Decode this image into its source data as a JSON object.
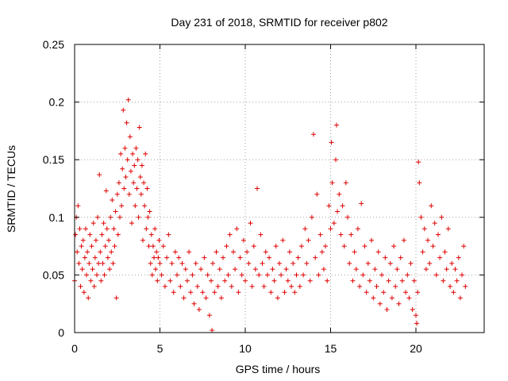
{
  "chart_data": {
    "type": "scatter",
    "title": "Day 231 of 2018, SRMTID for receiver p802",
    "xlabel": "GPS time / hours",
    "ylabel": "SRMTID / TECUs",
    "xlim": [
      0,
      24
    ],
    "ylim": [
      0,
      0.25
    ],
    "xticks": [
      0,
      5,
      10,
      15,
      20
    ],
    "xtick_labels": [
      "0",
      "5",
      "10",
      "15",
      "20"
    ],
    "yticks": [
      0,
      0.05,
      0.1,
      0.15,
      0.2,
      0.25
    ],
    "ytick_labels": [
      "0",
      "0.05",
      "0.1",
      "0.15",
      "0.2",
      "0.25"
    ],
    "grid": true,
    "marker": "+",
    "marker_color": "#e00000",
    "series": [
      {
        "name": "SRMTID",
        "points": [
          [
            0.0,
            0.045
          ],
          [
            0.05,
            0.085
          ],
          [
            0.1,
            0.1
          ],
          [
            0.15,
            0.07
          ],
          [
            0.2,
            0.11
          ],
          [
            0.25,
            0.06
          ],
          [
            0.3,
            0.09
          ],
          [
            0.35,
            0.04
          ],
          [
            0.4,
            0.075
          ],
          [
            0.45,
            0.055
          ],
          [
            0.5,
            0.08
          ],
          [
            0.55,
            0.035
          ],
          [
            0.6,
            0.065
          ],
          [
            0.65,
            0.09
          ],
          [
            0.7,
            0.05
          ],
          [
            0.75,
            0.07
          ],
          [
            0.8,
            0.03
          ],
          [
            0.85,
            0.06
          ],
          [
            0.9,
            0.085
          ],
          [
            0.95,
            0.045
          ],
          [
            1.0,
            0.075
          ],
          [
            1.05,
            0.055
          ],
          [
            1.1,
            0.095
          ],
          [
            1.15,
            0.04
          ],
          [
            1.2,
            0.065
          ],
          [
            1.25,
            0.08
          ],
          [
            1.3,
            0.05
          ],
          [
            1.35,
            0.1
          ],
          [
            1.4,
            0.06
          ],
          [
            1.45,
            0.137
          ],
          [
            1.5,
            0.07
          ],
          [
            1.55,
            0.045
          ],
          [
            1.6,
            0.085
          ],
          [
            1.65,
            0.06
          ],
          [
            1.7,
            0.095
          ],
          [
            1.75,
            0.05
          ],
          [
            1.8,
            0.075
          ],
          [
            1.85,
            0.123
          ],
          [
            1.9,
            0.09
          ],
          [
            1.95,
            0.065
          ],
          [
            2.0,
            0.08
          ],
          [
            2.05,
            0.055
          ],
          [
            2.1,
            0.1
          ],
          [
            2.15,
            0.07
          ],
          [
            2.2,
            0.115
          ],
          [
            2.25,
            0.06
          ],
          [
            2.3,
            0.09
          ],
          [
            2.35,
            0.075
          ],
          [
            2.4,
            0.105
          ],
          [
            2.45,
            0.03
          ],
          [
            2.5,
            0.12
          ],
          [
            2.55,
            0.085
          ],
          [
            2.6,
            0.13
          ],
          [
            2.65,
            0.1
          ],
          [
            2.7,
            0.155
          ],
          [
            2.75,
            0.11
          ],
          [
            2.8,
            0.142
          ],
          [
            2.85,
            0.193
          ],
          [
            2.9,
            0.125
          ],
          [
            2.95,
            0.16
          ],
          [
            3.0,
            0.135
          ],
          [
            3.05,
            0.182
          ],
          [
            3.1,
            0.15
          ],
          [
            3.15,
            0.202
          ],
          [
            3.2,
            0.12
          ],
          [
            3.25,
            0.17
          ],
          [
            3.3,
            0.14
          ],
          [
            3.35,
            0.095
          ],
          [
            3.4,
            0.155
          ],
          [
            3.45,
            0.13
          ],
          [
            3.5,
            0.145
          ],
          [
            3.55,
            0.11
          ],
          [
            3.6,
            0.16
          ],
          [
            3.65,
            0.125
          ],
          [
            3.7,
            0.15
          ],
          [
            3.75,
            0.1
          ],
          [
            3.8,
            0.178
          ],
          [
            3.85,
            0.135
          ],
          [
            3.9,
            0.12
          ],
          [
            3.95,
            0.145
          ],
          [
            4.0,
            0.08
          ],
          [
            4.05,
            0.13
          ],
          [
            4.1,
            0.11
          ],
          [
            4.15,
            0.155
          ],
          [
            4.2,
            0.09
          ],
          [
            4.25,
            0.125
          ],
          [
            4.3,
            0.1
          ],
          [
            4.35,
            0.075
          ],
          [
            4.4,
            0.105
          ],
          [
            4.45,
            0.06
          ],
          [
            4.5,
            0.085
          ],
          [
            4.55,
            0.05
          ],
          [
            4.6,
            0.075
          ],
          [
            4.65,
            0.065
          ],
          [
            4.7,
            0.09
          ],
          [
            4.75,
            0.055
          ],
          [
            4.8,
            0.07
          ],
          [
            4.85,
            0.045
          ],
          [
            4.9,
            0.065
          ],
          [
            4.95,
            0.08
          ],
          [
            5.0,
            0.06
          ],
          [
            5.1,
            0.05
          ],
          [
            5.2,
            0.075
          ],
          [
            5.3,
            0.04
          ],
          [
            5.4,
            0.065
          ],
          [
            5.5,
            0.085
          ],
          [
            5.6,
            0.045
          ],
          [
            5.7,
            0.06
          ],
          [
            5.8,
            0.035
          ],
          [
            5.9,
            0.07
          ],
          [
            6.0,
            0.05
          ],
          [
            6.1,
            0.065
          ],
          [
            6.2,
            0.04
          ],
          [
            6.3,
            0.06
          ],
          [
            6.4,
            0.03
          ],
          [
            6.5,
            0.055
          ],
          [
            6.6,
            0.045
          ],
          [
            6.7,
            0.07
          ],
          [
            6.8,
            0.035
          ],
          [
            6.9,
            0.05
          ],
          [
            7.0,
            0.025
          ],
          [
            7.1,
            0.06
          ],
          [
            7.2,
            0.04
          ],
          [
            7.3,
            0.02
          ],
          [
            7.4,
            0.055
          ],
          [
            7.5,
            0.035
          ],
          [
            7.6,
            0.065
          ],
          [
            7.7,
            0.03
          ],
          [
            7.8,
            0.05
          ],
          [
            7.9,
            0.015
          ],
          [
            8.0,
            0.045
          ],
          [
            8.05,
            0.002
          ],
          [
            8.1,
            0.06
          ],
          [
            8.2,
            0.035
          ],
          [
            8.3,
            0.07
          ],
          [
            8.4,
            0.04
          ],
          [
            8.5,
            0.055
          ],
          [
            8.6,
            0.03
          ],
          [
            8.7,
            0.065
          ],
          [
            8.8,
            0.045
          ],
          [
            8.9,
            0.075
          ],
          [
            9.0,
            0.05
          ],
          [
            9.1,
            0.085
          ],
          [
            9.2,
            0.04
          ],
          [
            9.3,
            0.07
          ],
          [
            9.4,
            0.055
          ],
          [
            9.5,
            0.09
          ],
          [
            9.6,
            0.035
          ],
          [
            9.7,
            0.065
          ],
          [
            9.8,
            0.05
          ],
          [
            9.9,
            0.08
          ],
          [
            10.0,
            0.045
          ],
          [
            10.1,
            0.07
          ],
          [
            10.2,
            0.06
          ],
          [
            10.3,
            0.095
          ],
          [
            10.4,
            0.04
          ],
          [
            10.5,
            0.075
          ],
          [
            10.6,
            0.055
          ],
          [
            10.7,
            0.125
          ],
          [
            10.8,
            0.05
          ],
          [
            10.9,
            0.085
          ],
          [
            11.0,
            0.06
          ],
          [
            11.1,
            0.04
          ],
          [
            11.2,
            0.07
          ],
          [
            11.3,
            0.05
          ],
          [
            11.4,
            0.065
          ],
          [
            11.5,
            0.035
          ],
          [
            11.6,
            0.055
          ],
          [
            11.7,
            0.045
          ],
          [
            11.8,
            0.075
          ],
          [
            11.9,
            0.03
          ],
          [
            12.0,
            0.06
          ],
          [
            12.1,
            0.05
          ],
          [
            12.2,
            0.08
          ],
          [
            12.3,
            0.035
          ],
          [
            12.4,
            0.055
          ],
          [
            12.5,
            0.045
          ],
          [
            12.6,
            0.07
          ],
          [
            12.7,
            0.04
          ],
          [
            12.8,
            0.06
          ],
          [
            12.9,
            0.035
          ],
          [
            13.0,
            0.05
          ],
          [
            13.1,
            0.065
          ],
          [
            13.2,
            0.04
          ],
          [
            13.3,
            0.075
          ],
          [
            13.4,
            0.05
          ],
          [
            13.5,
            0.09
          ],
          [
            13.6,
            0.06
          ],
          [
            13.7,
            0.08
          ],
          [
            13.8,
            0.045
          ],
          [
            13.9,
            0.1
          ],
          [
            14.0,
            0.172
          ],
          [
            14.1,
            0.065
          ],
          [
            14.2,
            0.12
          ],
          [
            14.3,
            0.05
          ],
          [
            14.4,
            0.085
          ],
          [
            14.5,
            0.07
          ],
          [
            14.6,
            0.055
          ],
          [
            14.7,
            0.075
          ],
          [
            14.8,
            0.045
          ],
          [
            14.9,
            0.11
          ],
          [
            15.0,
            0.09
          ],
          [
            15.05,
            0.165
          ],
          [
            15.1,
            0.13
          ],
          [
            15.2,
            0.095
          ],
          [
            15.3,
            0.15
          ],
          [
            15.35,
            0.18
          ],
          [
            15.4,
            0.105
          ],
          [
            15.5,
            0.12
          ],
          [
            15.6,
            0.085
          ],
          [
            15.7,
            0.11
          ],
          [
            15.8,
            0.075
          ],
          [
            15.9,
            0.13
          ],
          [
            16.0,
            0.1
          ],
          [
            16.1,
            0.06
          ],
          [
            16.2,
            0.085
          ],
          [
            16.3,
            0.045
          ],
          [
            16.4,
            0.07
          ],
          [
            16.5,
            0.055
          ],
          [
            16.6,
            0.09
          ],
          [
            16.7,
            0.04
          ],
          [
            16.8,
            0.112
          ],
          [
            16.9,
            0.05
          ],
          [
            17.0,
            0.075
          ],
          [
            17.1,
            0.035
          ],
          [
            17.2,
            0.06
          ],
          [
            17.3,
            0.045
          ],
          [
            17.4,
            0.08
          ],
          [
            17.5,
            0.03
          ],
          [
            17.6,
            0.055
          ],
          [
            17.7,
            0.04
          ],
          [
            17.8,
            0.07
          ],
          [
            17.9,
            0.025
          ],
          [
            18.0,
            0.05
          ],
          [
            18.1,
            0.035
          ],
          [
            18.2,
            0.065
          ],
          [
            18.3,
            0.02
          ],
          [
            18.4,
            0.045
          ],
          [
            18.5,
            0.06
          ],
          [
            18.6,
            0.03
          ],
          [
            18.7,
            0.075
          ],
          [
            18.8,
            0.04
          ],
          [
            18.9,
            0.055
          ],
          [
            19.0,
            0.025
          ],
          [
            19.1,
            0.065
          ],
          [
            19.2,
            0.045
          ],
          [
            19.3,
            0.08
          ],
          [
            19.4,
            0.035
          ],
          [
            19.5,
            0.05
          ],
          [
            19.6,
            0.03
          ],
          [
            19.7,
            0.06
          ],
          [
            19.8,
            0.02
          ],
          [
            19.9,
            0.045
          ],
          [
            20.0,
            0.015
          ],
          [
            20.05,
            0.008
          ],
          [
            20.1,
            0.035
          ],
          [
            20.15,
            0.148
          ],
          [
            20.2,
            0.13
          ],
          [
            20.3,
            0.1
          ],
          [
            20.4,
            0.07
          ],
          [
            20.5,
            0.09
          ],
          [
            20.6,
            0.055
          ],
          [
            20.7,
            0.08
          ],
          [
            20.8,
            0.06
          ],
          [
            20.9,
            0.11
          ],
          [
            21.0,
            0.075
          ],
          [
            21.1,
            0.095
          ],
          [
            21.2,
            0.05
          ],
          [
            21.3,
            0.085
          ],
          [
            21.4,
            0.065
          ],
          [
            21.5,
            0.1
          ],
          [
            21.6,
            0.045
          ],
          [
            21.7,
            0.07
          ],
          [
            21.8,
            0.055
          ],
          [
            21.9,
            0.09
          ],
          [
            22.0,
            0.04
          ],
          [
            22.1,
            0.06
          ],
          [
            22.2,
            0.035
          ],
          [
            22.3,
            0.055
          ],
          [
            22.4,
            0.045
          ],
          [
            22.5,
            0.065
          ],
          [
            22.6,
            0.03
          ],
          [
            22.7,
            0.05
          ],
          [
            22.8,
            0.075
          ],
          [
            22.9,
            0.04
          ]
        ]
      }
    ]
  }
}
